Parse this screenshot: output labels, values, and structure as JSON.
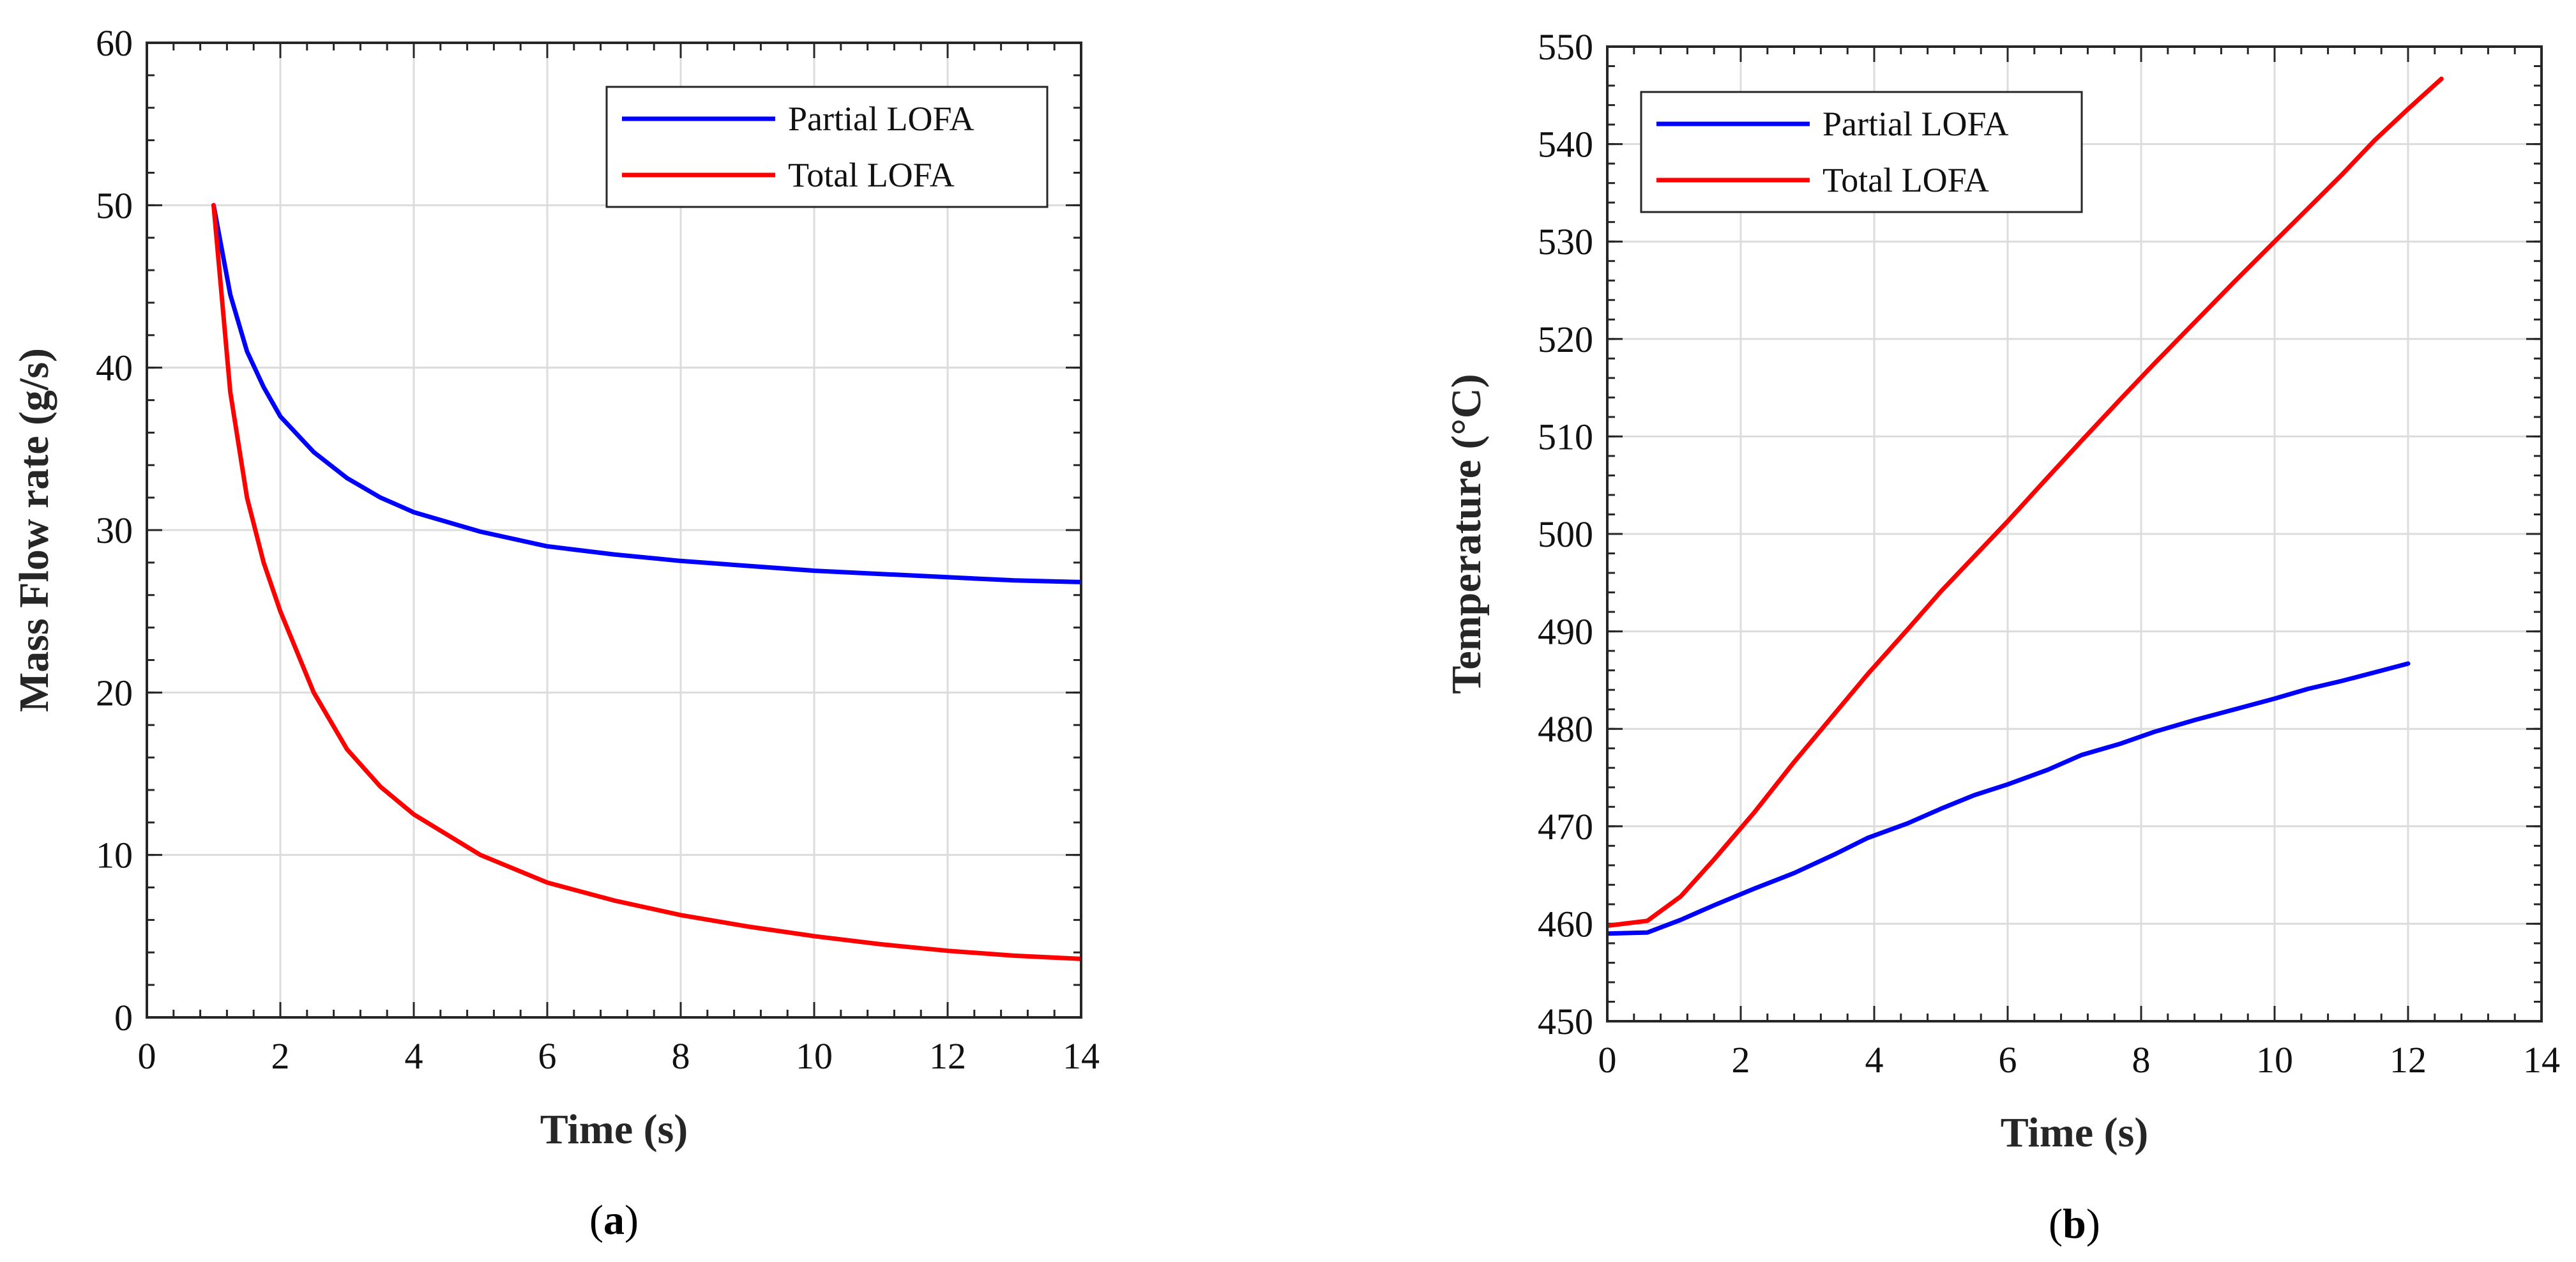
{
  "chart_data": [
    {
      "type": "line",
      "panel_label": "a",
      "title": "",
      "xlabel": "Time (s)",
      "ylabel": "Mass Flow rate (g/s)",
      "xlim": [
        0,
        14
      ],
      "ylim": [
        0,
        60
      ],
      "xticks": [
        0,
        2,
        4,
        6,
        8,
        10,
        12,
        14
      ],
      "yticks": [
        0,
        10,
        20,
        30,
        40,
        50,
        60
      ],
      "grid": true,
      "legend_position": "top-right",
      "series": [
        {
          "name": "Partial LOFA",
          "color": "#0000ff",
          "x": [
            1.0,
            1.25,
            1.5,
            1.75,
            2.0,
            2.5,
            3.0,
            3.5,
            4.0,
            5.0,
            6.0,
            7.0,
            8.0,
            9.0,
            10.0,
            11.0,
            12.0,
            13.0,
            14.0
          ],
          "y": [
            50.0,
            44.5,
            41.0,
            38.8,
            37.0,
            34.8,
            33.2,
            32.0,
            31.1,
            29.9,
            29.0,
            28.5,
            28.1,
            27.8,
            27.5,
            27.3,
            27.1,
            26.9,
            26.8
          ]
        },
        {
          "name": "Total LOFA",
          "color": "#ff0000",
          "x": [
            1.0,
            1.25,
            1.5,
            1.75,
            2.0,
            2.5,
            3.0,
            3.5,
            4.0,
            5.0,
            6.0,
            7.0,
            8.0,
            9.0,
            10.0,
            11.0,
            12.0,
            13.0,
            14.0
          ],
          "y": [
            50.0,
            38.5,
            32.0,
            28.0,
            25.0,
            20.0,
            16.5,
            14.2,
            12.5,
            10.0,
            8.3,
            7.2,
            6.3,
            5.6,
            5.0,
            4.5,
            4.1,
            3.8,
            3.6
          ]
        }
      ]
    },
    {
      "type": "line",
      "panel_label": "b",
      "title": "",
      "xlabel": "Time (s)",
      "ylabel": "Temperature (°C)",
      "xlim": [
        0,
        14
      ],
      "ylim": [
        450,
        550
      ],
      "xticks": [
        0,
        2,
        4,
        6,
        8,
        10,
        12,
        14
      ],
      "yticks": [
        450,
        460,
        470,
        480,
        490,
        500,
        510,
        520,
        530,
        540,
        550
      ],
      "grid": true,
      "legend_position": "top-left",
      "series": [
        {
          "name": "Partial LOFA",
          "color": "#0000ff",
          "x": [
            0.0,
            0.6,
            1.1,
            1.6,
            2.2,
            2.8,
            3.4,
            3.9,
            4.5,
            5.0,
            5.5,
            6.0,
            6.6,
            7.1,
            7.7,
            8.2,
            8.8,
            9.4,
            10.0,
            10.5,
            11.0,
            11.5,
            12.0
          ],
          "y": [
            459.0,
            459.1,
            460.4,
            461.9,
            463.6,
            465.2,
            467.1,
            468.8,
            470.3,
            471.8,
            473.2,
            474.3,
            475.8,
            477.3,
            478.5,
            479.7,
            480.9,
            482.0,
            483.1,
            484.1,
            484.9,
            485.8,
            486.7
          ]
        },
        {
          "name": "Total LOFA",
          "color": "#ff0000",
          "x": [
            0.0,
            0.6,
            1.1,
            1.6,
            2.2,
            2.8,
            3.4,
            3.9,
            4.5,
            5.0,
            5.5,
            6.0,
            6.6,
            7.1,
            7.7,
            8.2,
            8.8,
            9.4,
            10.0,
            10.5,
            11.0,
            11.5,
            12.0,
            12.5
          ],
          "y": [
            459.8,
            460.3,
            462.8,
            466.6,
            471.4,
            476.6,
            481.5,
            485.6,
            490.2,
            494.1,
            497.7,
            501.3,
            505.8,
            509.5,
            513.9,
            517.5,
            521.7,
            525.9,
            530.0,
            533.4,
            536.8,
            540.4,
            543.6,
            546.7
          ]
        }
      ]
    }
  ]
}
